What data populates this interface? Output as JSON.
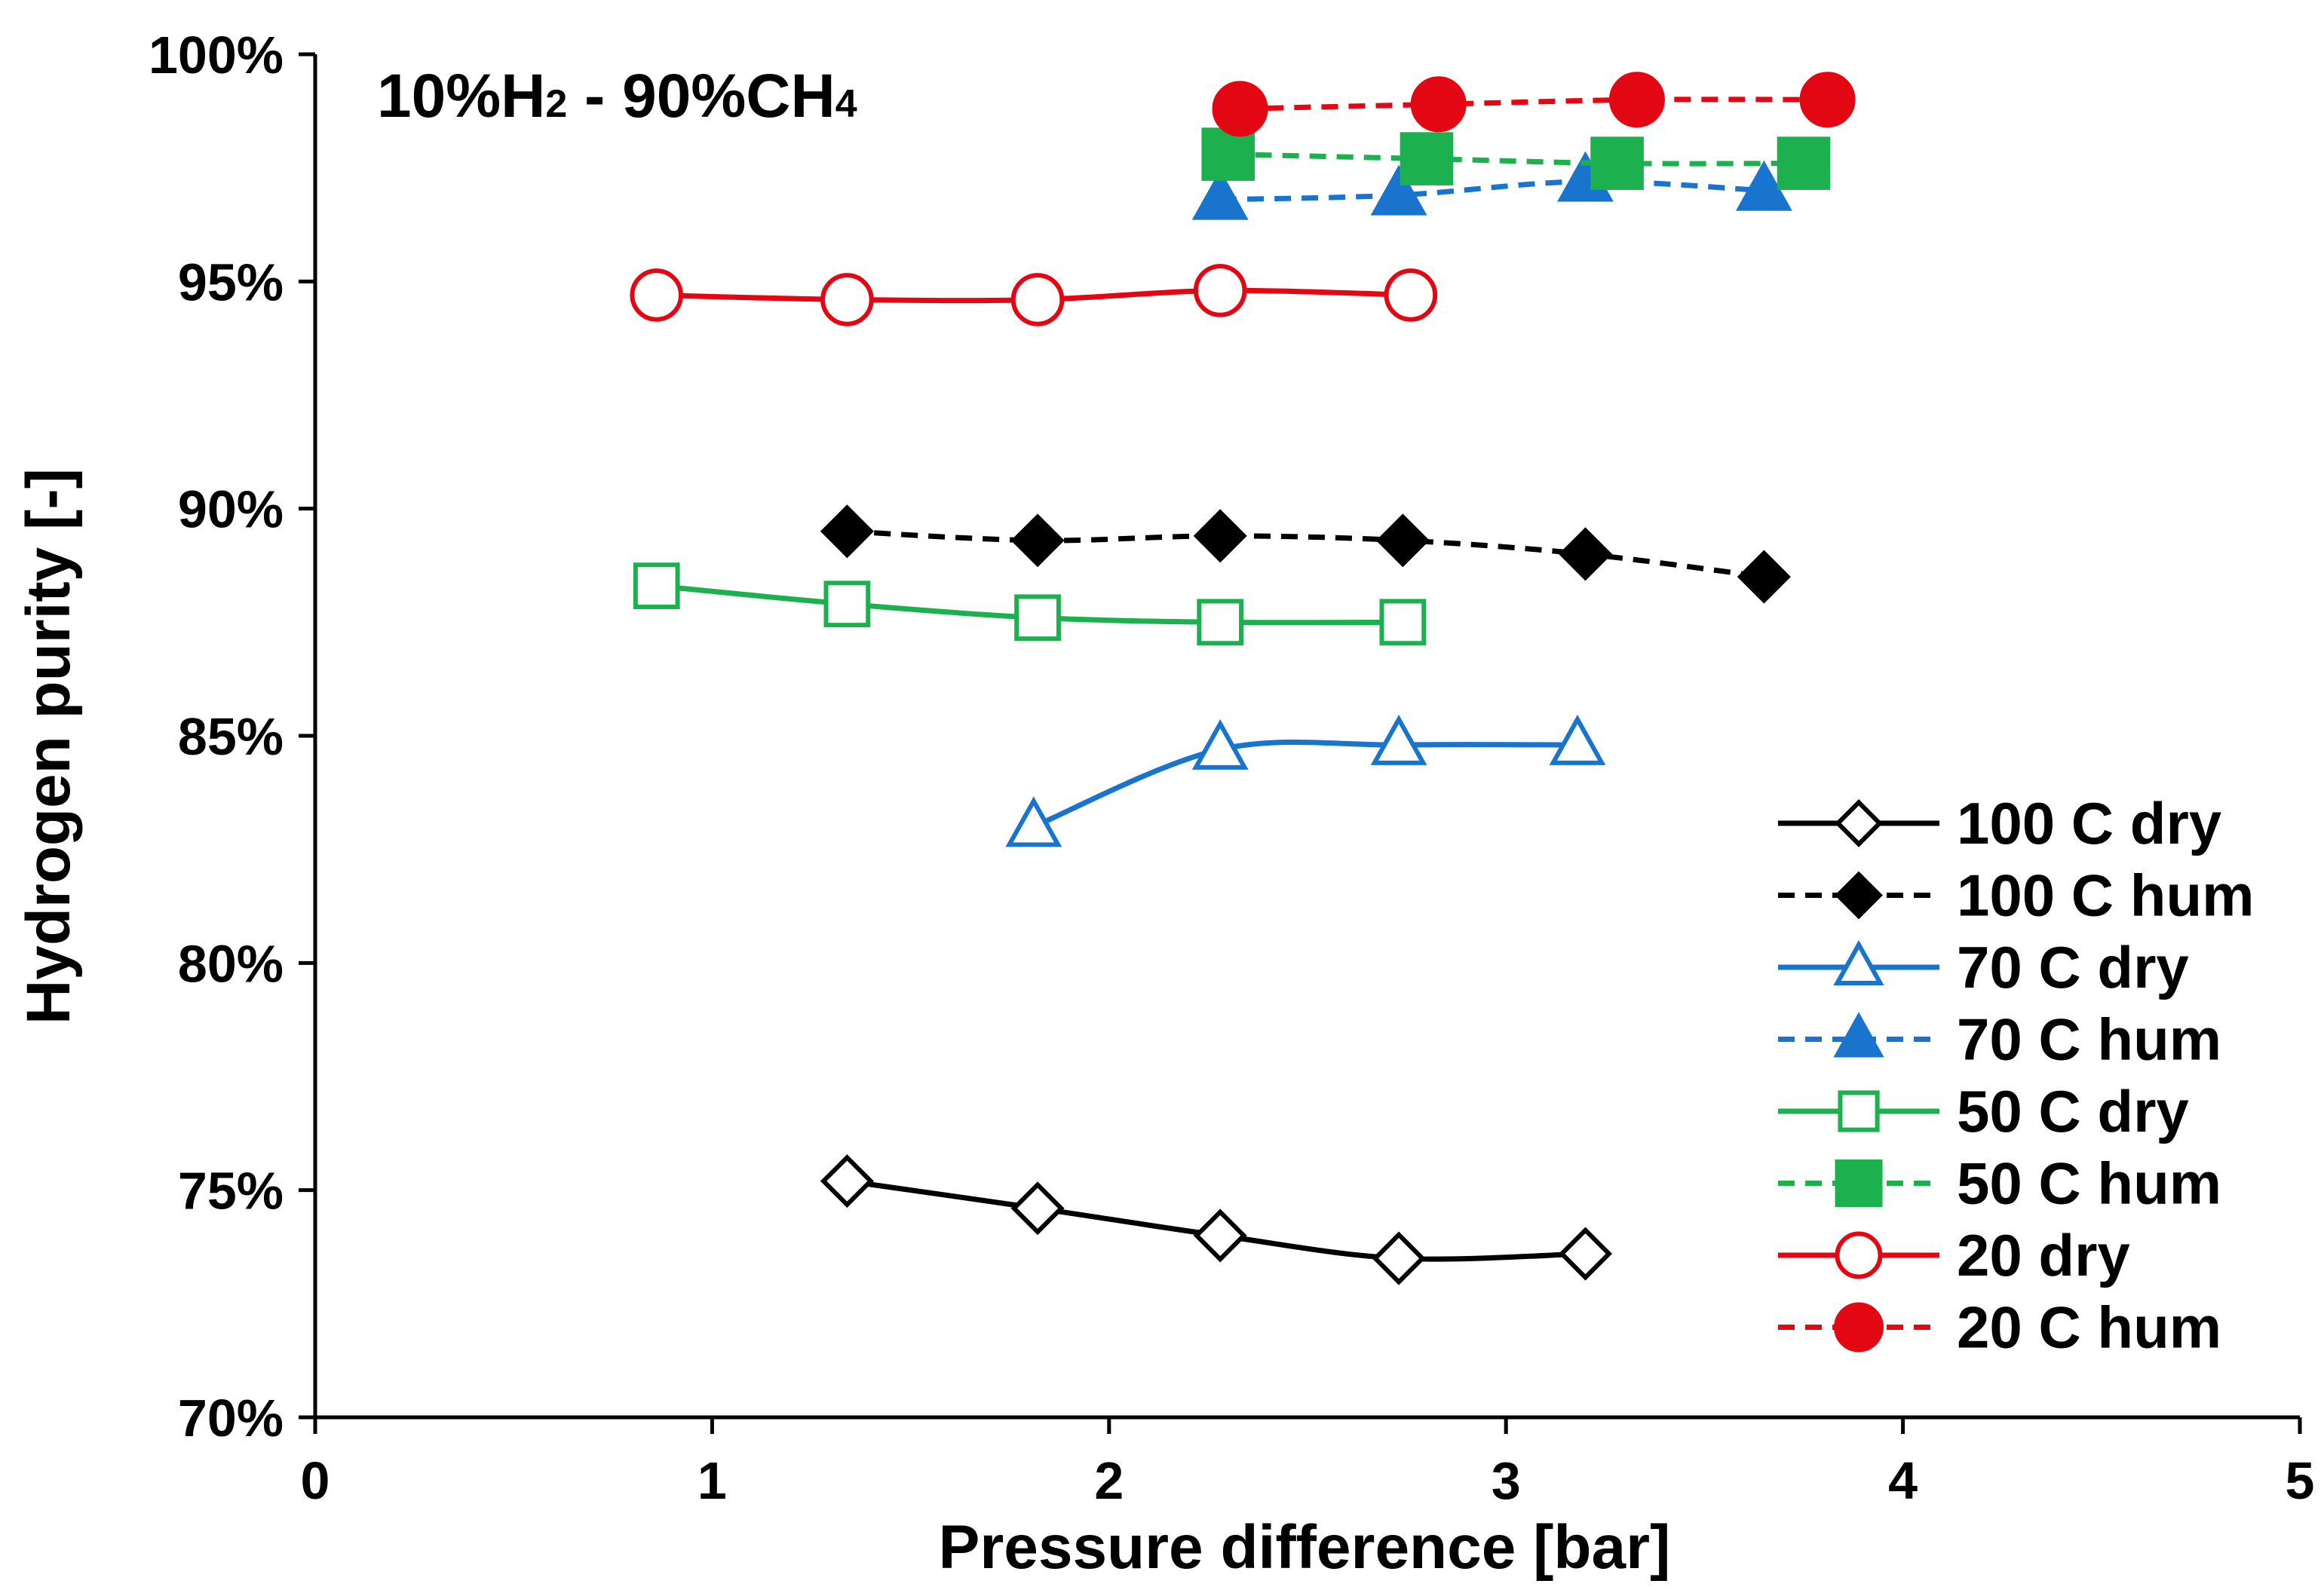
{
  "chart_data": {
    "type": "line",
    "title": "",
    "annotation": {
      "parts": [
        "10%H",
        "2",
        " - 90%CH",
        "4"
      ]
    },
    "xlabel": "Pressure difference [bar]",
    "ylabel": "Hydrogen purity [-]",
    "xlim": [
      0,
      5
    ],
    "ylim": [
      70,
      100
    ],
    "xticks": [
      0,
      1,
      2,
      3,
      4,
      5
    ],
    "xtick_labels": [
      "0",
      "1",
      "2",
      "3",
      "4",
      "5"
    ],
    "yticks": [
      70,
      75,
      80,
      85,
      90,
      95,
      100
    ],
    "ytick_labels": [
      "70%",
      "75%",
      "80%",
      "85%",
      "90%",
      "95%",
      "100%"
    ],
    "grid": false,
    "legend_position": "right",
    "series": [
      {
        "name": "100 C dry",
        "color": "#000000",
        "dash": "solid",
        "marker": "diamond",
        "filled": false,
        "x": [
          1.34,
          1.82,
          2.28,
          2.73,
          3.2
        ],
        "y": [
          75.2,
          74.6,
          74.0,
          73.5,
          73.6
        ]
      },
      {
        "name": "100 C hum",
        "color": "#000000",
        "dash": "dashed",
        "marker": "diamond",
        "filled": true,
        "x": [
          1.34,
          1.82,
          2.28,
          2.74,
          3.2,
          3.65
        ],
        "y": [
          89.5,
          89.3,
          89.4,
          89.3,
          89.0,
          88.5
        ]
      },
      {
        "name": "70 C dry",
        "color": "#1874CD",
        "dash": "solid",
        "marker": "triangle",
        "filled": false,
        "x": [
          1.81,
          2.28,
          2.73,
          3.18
        ],
        "y": [
          83.0,
          84.7,
          84.8,
          84.8
        ]
      },
      {
        "name": "70 C hum",
        "color": "#1874CD",
        "dash": "dashed",
        "marker": "triangle",
        "filled": true,
        "x": [
          2.28,
          2.73,
          3.2,
          3.65
        ],
        "y": [
          96.8,
          96.9,
          97.2,
          97.0
        ]
      },
      {
        "name": "50 C dry",
        "color": "#1CB04E",
        "dash": "solid",
        "marker": "square",
        "filled": false,
        "x": [
          0.86,
          1.34,
          1.82,
          2.28,
          2.74
        ],
        "y": [
          88.3,
          87.9,
          87.6,
          87.5,
          87.5
        ]
      },
      {
        "name": "50 C hum",
        "color": "#1CB04E",
        "dash": "dashed",
        "marker": "square",
        "filled": true,
        "x": [
          2.3,
          2.8,
          3.28,
          3.75
        ],
        "y": [
          97.8,
          97.7,
          97.6,
          97.6
        ]
      },
      {
        "name": "20 dry",
        "color": "#E30613",
        "dash": "solid",
        "marker": "circle",
        "filled": false,
        "x": [
          0.86,
          1.34,
          1.82,
          2.28,
          2.76
        ],
        "y": [
          94.7,
          94.6,
          94.6,
          94.8,
          94.7
        ]
      },
      {
        "name": "20 C hum",
        "color": "#E30613",
        "dash": "dashed",
        "marker": "circle",
        "filled": true,
        "x": [
          2.33,
          2.83,
          3.33,
          3.81
        ],
        "y": [
          98.8,
          98.9,
          99.0,
          99.0
        ]
      }
    ]
  }
}
